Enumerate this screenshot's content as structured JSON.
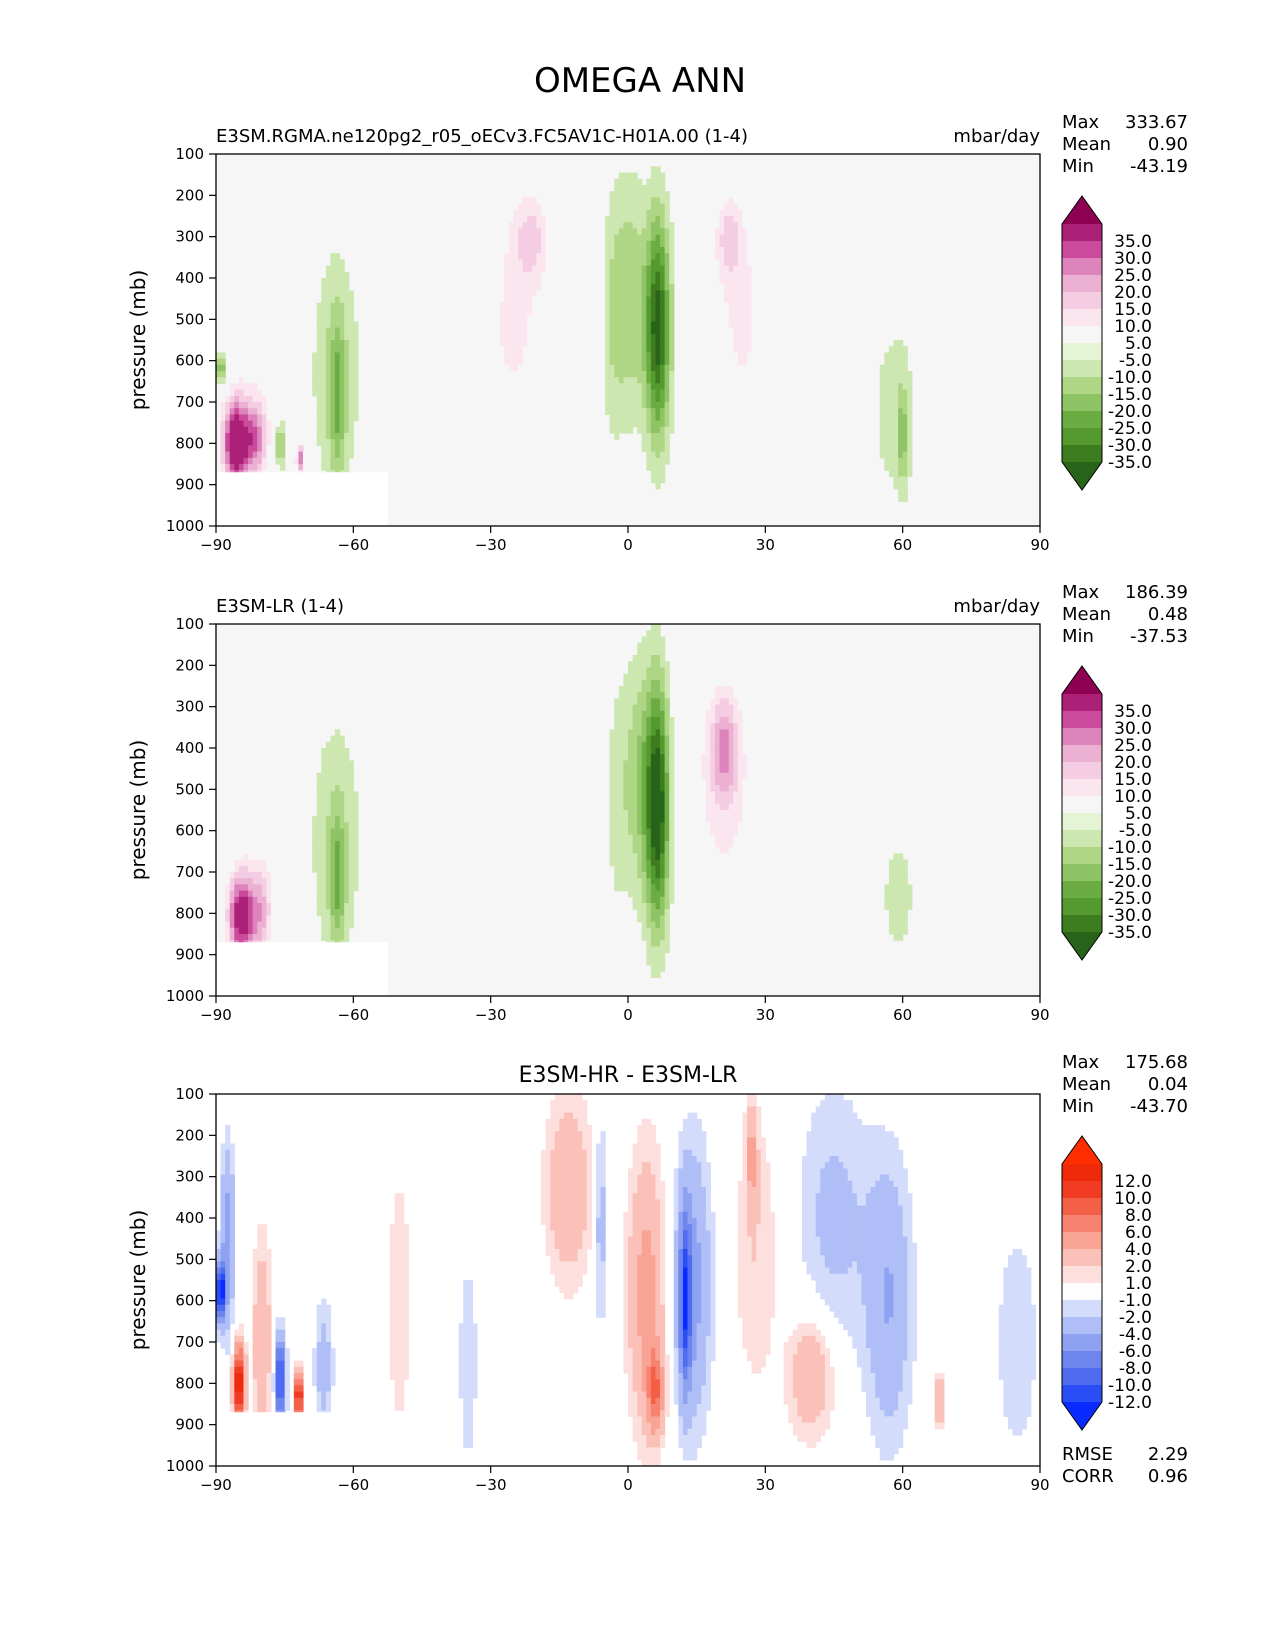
{
  "figure_title": "OMEGA ANN",
  "colors": {
    "main_levels": [
      -35,
      -30,
      -25,
      -20,
      -15,
      -10,
      -5,
      5,
      10,
      15,
      20,
      25,
      30,
      35
    ],
    "main_bins": [
      "#276419",
      "#3e7d1f",
      "#559a2e",
      "#6bad42",
      "#8ec466",
      "#aed685",
      "#cce8b0",
      "#e6f4d6",
      "#f6f6f6",
      "#fbe6f0",
      "#f4cde3",
      "#ebb0d2",
      "#de84bc",
      "#cb4a9c",
      "#ac2178",
      "#8e0152"
    ],
    "diff_levels": [
      -12,
      -10,
      -8,
      -6,
      -4,
      -2,
      -1,
      1,
      2,
      4,
      6,
      8,
      10,
      12
    ],
    "diff_bins": [
      "#0a2bff",
      "#2b4df5",
      "#4f6cf0",
      "#6d86ee",
      "#8fa2f2",
      "#b0bef7",
      "#d4dcfb",
      "#fdfdfd",
      "#fde0dd",
      "#fbc1b8",
      "#f9a394",
      "#f7826f",
      "#f45f47",
      "#f13b22",
      "#ee2a0a",
      "#ff2e00"
    ],
    "background": "#f6f6f6",
    "missing": "#ffffff"
  },
  "chart_data": [
    {
      "type": "heatmap",
      "name": "test",
      "title_left": "E3SM.RGMA.ne120pg2_r05_oECv3.FC5AV1C-H01A.00 (1-4)",
      "title_center": "",
      "units": "mbar/day",
      "stats": [
        {
          "label": "Max",
          "value": "333.67"
        },
        {
          "label": "Mean",
          "value": "0.90"
        },
        {
          "label": "Min",
          "value": "-43.19"
        }
      ],
      "xlabel": "",
      "ylabel": "pressure (mb)",
      "xlim": [
        -90,
        90
      ],
      "ylim": [
        1000,
        100
      ],
      "xticks": [
        -90,
        -60,
        -30,
        0,
        30,
        60,
        90
      ],
      "xtick_labels": [
        "−90",
        "−60",
        "−30",
        "0",
        "30",
        "60",
        "90"
      ],
      "yticks": [
        100,
        200,
        300,
        400,
        500,
        600,
        700,
        800,
        900,
        1000
      ],
      "ytick_labels": [
        "100",
        "200",
        "300",
        "400",
        "500",
        "600",
        "700",
        "800",
        "900",
        "1000"
      ],
      "colorbar": "main",
      "colorbar_labels": [
        "35.0",
        "30.0",
        "25.0",
        "20.0",
        "15.0",
        "10.0",
        "5.0",
        "-5.0",
        "-10.0",
        "-15.0",
        "-20.0",
        "-25.0",
        "-30.0",
        "-35.0"
      ],
      "missing_region": {
        "lat_min": -90,
        "lat_max": -52.5,
        "p_min": 870
      },
      "features": [
        {
          "lat": 6.5,
          "p": 520,
          "value": -38,
          "lat_width": 2.8,
          "p_width": 270
        },
        {
          "lat": 0.5,
          "p": 450,
          "value": -14,
          "lat_width": 3.5,
          "p_width": 300
        },
        {
          "lat": -3.5,
          "p": 500,
          "value": -8,
          "lat_width": 2.5,
          "p_width": 330
        },
        {
          "lat": -25,
          "p": 520,
          "value": 11,
          "lat_width": 9,
          "p_width": 360
        },
        {
          "lat": -21,
          "p": 300,
          "value": 12,
          "lat_width": 4,
          "p_width": 110
        },
        {
          "lat": 25,
          "p": 500,
          "value": 11,
          "lat_width": 8,
          "p_width": 340
        },
        {
          "lat": 22,
          "p": 300,
          "value": 12,
          "lat_width": 3,
          "p_width": 100
        },
        {
          "lat": -64,
          "p": 620,
          "value": -9,
          "lat_width": 6.5,
          "p_width": 330
        },
        {
          "lat": -63.5,
          "p": 690,
          "value": -15,
          "lat_width": 1.8,
          "p_width": 200
        },
        {
          "lat": 58,
          "p": 720,
          "value": -7,
          "lat_width": 6,
          "p_width": 280
        },
        {
          "lat": 60,
          "p": 780,
          "value": -13,
          "lat_width": 1.2,
          "p_width": 120
        },
        {
          "lat": -80,
          "p": 540,
          "value": 7,
          "lat_width": 7,
          "p_width": 260
        },
        {
          "lat": -85.5,
          "p": 800,
          "value": 45,
          "lat_width": 3.2,
          "p_width": 110
        },
        {
          "lat": -81,
          "p": 790,
          "value": 22,
          "lat_width": 2.5,
          "p_width": 90
        },
        {
          "lat": -76,
          "p": 800,
          "value": -18,
          "lat_width": 1.2,
          "p_width": 60
        },
        {
          "lat": -71.5,
          "p": 840,
          "value": 30,
          "lat_width": 1.0,
          "p_width": 40
        },
        {
          "lat": -89,
          "p": 620,
          "value": -22,
          "lat_width": 1.2,
          "p_width": 40
        },
        {
          "lat": 78,
          "p": 700,
          "value": 7,
          "lat_width": 1.2,
          "p_width": 180
        }
      ]
    },
    {
      "type": "heatmap",
      "name": "reference",
      "title_left": "E3SM-LR (1-4)",
      "title_center": "",
      "units": "mbar/day",
      "stats": [
        {
          "label": "Max",
          "value": "186.39"
        },
        {
          "label": "Mean",
          "value": "0.48"
        },
        {
          "label": "Min",
          "value": "-37.53"
        }
      ],
      "xlabel": "",
      "ylabel": "pressure (mb)",
      "xlim": [
        -90,
        90
      ],
      "ylim": [
        1000,
        100
      ],
      "xticks": [
        -90,
        -60,
        -30,
        0,
        30,
        60,
        90
      ],
      "xtick_labels": [
        "−90",
        "−60",
        "−30",
        "0",
        "30",
        "60",
        "90"
      ],
      "yticks": [
        100,
        200,
        300,
        400,
        500,
        600,
        700,
        800,
        900,
        1000
      ],
      "ytick_labels": [
        "100",
        "200",
        "300",
        "400",
        "500",
        "600",
        "700",
        "800",
        "900",
        "1000"
      ],
      "colorbar": "main",
      "colorbar_labels": [
        "35.0",
        "30.0",
        "25.0",
        "20.0",
        "15.0",
        "10.0",
        "5.0",
        "-5.0",
        "-10.0",
        "-15.0",
        "-20.0",
        "-25.0",
        "-30.0",
        "-35.0"
      ],
      "missing_region": {
        "lat_min": -90,
        "lat_max": -52.5,
        "p_min": 870
      },
      "features": [
        {
          "lat": 6.5,
          "p": 540,
          "value": -40,
          "lat_width": 2.6,
          "p_width": 290
        },
        {
          "lat": 2.5,
          "p": 470,
          "value": -14,
          "lat_width": 3.5,
          "p_width": 300
        },
        {
          "lat": -2.5,
          "p": 520,
          "value": -7,
          "lat_width": 2.5,
          "p_width": 310
        },
        {
          "lat": -27,
          "p": 520,
          "value": 10,
          "lat_width": 9,
          "p_width": 360
        },
        {
          "lat": 21,
          "p": 500,
          "value": 12,
          "lat_width": 8,
          "p_width": 330
        },
        {
          "lat": 21,
          "p": 400,
          "value": 18,
          "lat_width": 3,
          "p_width": 120
        },
        {
          "lat": -64,
          "p": 620,
          "value": -9,
          "lat_width": 6.5,
          "p_width": 330
        },
        {
          "lat": -63.5,
          "p": 720,
          "value": -15,
          "lat_width": 1.8,
          "p_width": 170
        },
        {
          "lat": 59,
          "p": 760,
          "value": -6,
          "lat_width": 6,
          "p_width": 260
        },
        {
          "lat": -80,
          "p": 540,
          "value": 6,
          "lat_width": 7,
          "p_width": 260
        },
        {
          "lat": -84.5,
          "p": 810,
          "value": 40,
          "lat_width": 3.0,
          "p_width": 110
        },
        {
          "lat": -80,
          "p": 800,
          "value": 18,
          "lat_width": 2.5,
          "p_width": 110
        },
        {
          "lat": 79,
          "p": 750,
          "value": 6,
          "lat_width": 1.5,
          "p_width": 180
        }
      ]
    },
    {
      "type": "heatmap",
      "name": "difference",
      "title_left": "",
      "title_center": "E3SM-HR - E3SM-LR",
      "units": "",
      "stats": [
        {
          "label": "Max",
          "value": "175.68"
        },
        {
          "label": "Mean",
          "value": "0.04"
        },
        {
          "label": "Min",
          "value": "-43.70"
        }
      ],
      "extra_stats": [
        {
          "label": "RMSE",
          "value": "2.29"
        },
        {
          "label": "CORR",
          "value": "0.96"
        }
      ],
      "xlabel": "",
      "ylabel": "pressure (mb)",
      "xlim": [
        -90,
        90
      ],
      "ylim": [
        1000,
        100
      ],
      "xticks": [
        -90,
        -60,
        -30,
        0,
        30,
        60,
        90
      ],
      "xtick_labels": [
        "−90",
        "−60",
        "−30",
        "0",
        "30",
        "60",
        "90"
      ],
      "yticks": [
        100,
        200,
        300,
        400,
        500,
        600,
        700,
        800,
        900,
        1000
      ],
      "ytick_labels": [
        "100",
        "200",
        "300",
        "400",
        "500",
        "600",
        "700",
        "800",
        "900",
        "1000"
      ],
      "colorbar": "diff",
      "colorbar_labels": [
        "12.0",
        "10.0",
        "8.0",
        "6.0",
        "4.0",
        "2.0",
        "1.0",
        "-1.0",
        "-2.0",
        "-4.0",
        "-6.0",
        "-8.0",
        "-10.0",
        "-12.0"
      ],
      "missing_region": {
        "lat_min": -90,
        "lat_max": -62,
        "p_min": 870
      },
      "features": [
        {
          "lat": 4,
          "p": 580,
          "value": 5,
          "lat_width": 4,
          "p_width": 330
        },
        {
          "lat": 6,
          "p": 820,
          "value": 7,
          "lat_width": 1.8,
          "p_width": 100
        },
        {
          "lat": 14,
          "p": 560,
          "value": -5,
          "lat_width": 4,
          "p_width": 330
        },
        {
          "lat": 12.5,
          "p": 600,
          "value": -9,
          "lat_width": 1.2,
          "p_width": 200
        },
        {
          "lat": -13,
          "p": 330,
          "value": 4,
          "lat_width": 5,
          "p_width": 220
        },
        {
          "lat": -6,
          "p": 400,
          "value": -3,
          "lat_width": 1.5,
          "p_width": 250
        },
        {
          "lat": 28,
          "p": 480,
          "value": 2,
          "lat_width": 5,
          "p_width": 350
        },
        {
          "lat": 27,
          "p": 250,
          "value": 4,
          "lat_width": 1.2,
          "p_width": 120
        },
        {
          "lat": 40,
          "p": 780,
          "value": 4,
          "lat_width": 5,
          "p_width": 150
        },
        {
          "lat": 45,
          "p": 400,
          "value": -2.5,
          "lat_width": 8,
          "p_width": 320
        },
        {
          "lat": 57,
          "p": 600,
          "value": -4,
          "lat_width": 5,
          "p_width": 330
        },
        {
          "lat": 68,
          "p": 840,
          "value": 5,
          "lat_width": 1.0,
          "p_width": 60
        },
        {
          "lat": -50,
          "p": 600,
          "value": 2,
          "lat_width": 2.5,
          "p_width": 330
        },
        {
          "lat": -35,
          "p": 750,
          "value": -2,
          "lat_width": 2.0,
          "p_width": 250
        },
        {
          "lat": -87.5,
          "p": 450,
          "value": -5,
          "lat_width": 1.5,
          "p_width": 220
        },
        {
          "lat": -89,
          "p": 580,
          "value": -14,
          "lat_width": 1.0,
          "p_width": 70
        },
        {
          "lat": -85,
          "p": 800,
          "value": 15,
          "lat_width": 1.2,
          "p_width": 90
        },
        {
          "lat": -80,
          "p": 700,
          "value": 4,
          "lat_width": 2.0,
          "p_width": 250
        },
        {
          "lat": -76,
          "p": 790,
          "value": -12,
          "lat_width": 1.1,
          "p_width": 100
        },
        {
          "lat": -72,
          "p": 830,
          "value": 14,
          "lat_width": 0.9,
          "p_width": 60
        },
        {
          "lat": -66.5,
          "p": 760,
          "value": -3,
          "lat_width": 2.0,
          "p_width": 160
        },
        {
          "lat": 85,
          "p": 700,
          "value": -1.8,
          "lat_width": 5,
          "p_width": 300
        }
      ]
    }
  ]
}
